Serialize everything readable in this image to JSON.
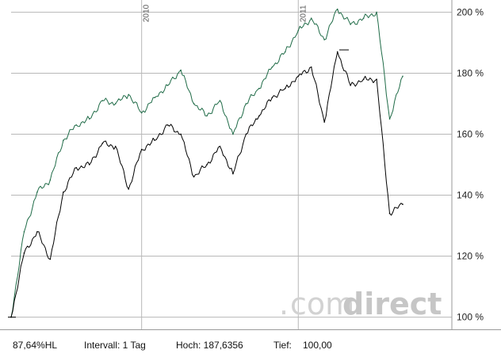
{
  "chart_data": {
    "type": "line",
    "title": "",
    "xlabel": "",
    "ylabel": "",
    "y_unit": "%",
    "ylim": [
      96,
      204
    ],
    "y_ticks": [
      100,
      120,
      140,
      160,
      180,
      200
    ],
    "y_tick_labels": [
      "100 %",
      "120 %",
      "140 %",
      "160 %",
      "180 %",
      "200 %"
    ],
    "grid": true,
    "y_axis_position": "right",
    "x_range": [
      "2009-03",
      "2011-09"
    ],
    "x_ticks": [
      {
        "date": "2010-01",
        "label": "2010"
      },
      {
        "date": "2011-01",
        "label": "2011"
      }
    ],
    "series": [
      {
        "color": "#1f6b47",
        "x": [
          "2009-03",
          "2009-04",
          "2009-05",
          "2009-06",
          "2009-07",
          "2009-08",
          "2009-09",
          "2009-10",
          "2009-11",
          "2009-12",
          "2010-01",
          "2010-02",
          "2010-03",
          "2010-04",
          "2010-05",
          "2010-06",
          "2010-07",
          "2010-08",
          "2010-09",
          "2010-10",
          "2010-11",
          "2010-12",
          "2011-01",
          "2011-02",
          "2011-03",
          "2011-04",
          "2011-05",
          "2011-06",
          "2011-07",
          "2011-08",
          "2011-09"
        ],
        "y": [
          100,
          128,
          141,
          145,
          158,
          163,
          165,
          171,
          170,
          173,
          167,
          172,
          176,
          181,
          170,
          166,
          171,
          160,
          170,
          175,
          182,
          187,
          194,
          198,
          191,
          201,
          196,
          198,
          200,
          165,
          179
        ]
      },
      {
        "color": "#000000",
        "x": [
          "2009-03",
          "2009-04",
          "2009-05",
          "2009-06",
          "2009-07",
          "2009-08",
          "2009-09",
          "2009-10",
          "2009-11",
          "2009-12",
          "2010-01",
          "2010-02",
          "2010-03",
          "2010-04",
          "2010-05",
          "2010-06",
          "2010-07",
          "2010-08",
          "2010-09",
          "2010-10",
          "2010-11",
          "2010-12",
          "2011-01",
          "2011-02",
          "2011-03",
          "2011-04",
          "2011-05",
          "2011-06",
          "2011-07",
          "2011-08",
          "2011-09"
        ],
        "y": [
          100,
          121,
          128,
          119,
          141,
          149,
          150,
          157,
          156,
          142,
          155,
          158,
          163,
          160,
          146,
          150,
          156,
          147,
          160,
          166,
          172,
          175,
          179,
          182,
          164,
          187,
          176,
          178,
          178,
          134,
          137
        ]
      }
    ]
  },
  "brand": {
    "dot": ".",
    "com": "com",
    "direct": "direct"
  },
  "footer": {
    "change": "87,64%HL",
    "interval": "Intervall: 1 Tag",
    "high": "Hoch: 187,6356",
    "low_label": "Tief:",
    "low_value": "100,00"
  }
}
